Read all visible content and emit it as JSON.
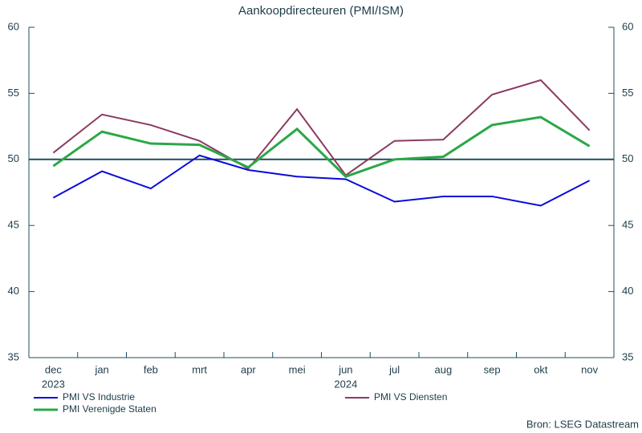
{
  "chart_data": {
    "type": "line",
    "title": "Aankoopdirecteuren (PMI/ISM)",
    "categories": [
      "dec",
      "jan",
      "feb",
      "mrt",
      "apr",
      "mei",
      "jun",
      "jul",
      "aug",
      "sep",
      "okt",
      "nov"
    ],
    "year_labels": [
      "2023",
      null,
      null,
      null,
      null,
      null,
      "2024",
      null,
      null,
      null,
      null,
      null
    ],
    "series": [
      {
        "name": "PMI VS Industrie",
        "color": "#0a0adc",
        "values": [
          47.1,
          49.1,
          47.8,
          50.3,
          49.2,
          48.7,
          48.5,
          46.8,
          47.2,
          47.2,
          46.5,
          48.4
        ]
      },
      {
        "name": "PMI VS Diensten",
        "color": "#8b3a62",
        "values": [
          50.5,
          53.4,
          52.6,
          51.4,
          49.3,
          53.8,
          48.8,
          51.4,
          51.5,
          54.9,
          56.0,
          52.2
        ]
      },
      {
        "name": "PMI Verenigde Staten",
        "color": "#2aa846",
        "values": [
          49.5,
          52.1,
          51.2,
          51.1,
          49.4,
          52.3,
          48.7,
          50.0,
          50.2,
          52.6,
          53.2,
          51.0
        ]
      }
    ],
    "ylim": [
      35,
      60
    ],
    "yticks": [
      35,
      40,
      45,
      50,
      55,
      60
    ],
    "y2lim": [
      35,
      60
    ],
    "y2ticks": [
      35,
      40,
      45,
      50,
      55,
      60
    ],
    "reference_line": 50,
    "reference_color": "#1d4f5e",
    "source": "Bron: LSEG Datastream"
  }
}
